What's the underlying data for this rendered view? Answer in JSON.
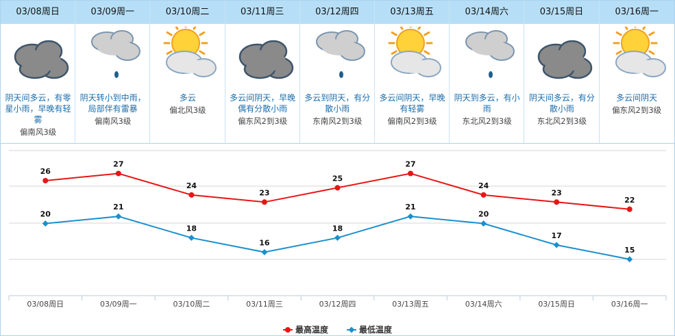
{
  "days": [
    {
      "date": "03/08周日",
      "desc": "阴天间多云，有零星小雨，早晚有轻雾",
      "wind": "偏南风3级",
      "icon": "overcast-cloud-icon",
      "drop": false
    },
    {
      "date": "03/09周一",
      "desc": "阴天转小到中雨，局部伴有雷暴",
      "wind": "偏南风3级",
      "icon": "cloud-rain-icon",
      "drop": true
    },
    {
      "date": "03/10周二",
      "desc": "多云",
      "wind": "偏北风3级",
      "icon": "sun-cloud-icon",
      "drop": false
    },
    {
      "date": "03/11周三",
      "desc": "多云间阴天，早晚偶有分散小雨",
      "wind": "偏东风2到3级",
      "icon": "overcast-cloud-icon",
      "drop": false
    },
    {
      "date": "03/12周四",
      "desc": "多云到阴天，有分散小雨",
      "wind": "东南风2到3级",
      "icon": "cloud-rain-icon",
      "drop": true
    },
    {
      "date": "03/13周五",
      "desc": "多云间阴天，早晚有轻雾",
      "wind": "偏南风2到3级",
      "icon": "sun-cloud-icon",
      "drop": false
    },
    {
      "date": "03/14周六",
      "desc": "阴天到多云，有小雨",
      "wind": "东北风2到3级",
      "icon": "cloud-rain-icon",
      "drop": true
    },
    {
      "date": "03/15周日",
      "desc": "阴天间多云，有分散小雨",
      "wind": "东北风2到3级",
      "icon": "overcast-cloud-icon",
      "drop": false
    },
    {
      "date": "03/16周一",
      "desc": "多云间阴天",
      "wind": "偏东风2到3级",
      "icon": "sun-cloud-icon",
      "drop": false
    }
  ],
  "chart_data": {
    "type": "line",
    "categories": [
      "03/08周日",
      "03/09周一",
      "03/10周二",
      "03/11周三",
      "03/12周四",
      "03/13周五",
      "03/14周六",
      "03/15周日",
      "03/16周一"
    ],
    "series": [
      {
        "name": "最高温度",
        "values": [
          26,
          27,
          24,
          23,
          25,
          27,
          24,
          23,
          22
        ],
        "color": "#e81515"
      },
      {
        "name": "最低温度",
        "values": [
          20,
          21,
          18,
          16,
          18,
          21,
          20,
          17,
          15
        ],
        "color": "#1a8fce"
      }
    ],
    "grid": true,
    "legend": "bottom"
  },
  "legend": {
    "high": "最高温度",
    "low": "最低温度"
  }
}
